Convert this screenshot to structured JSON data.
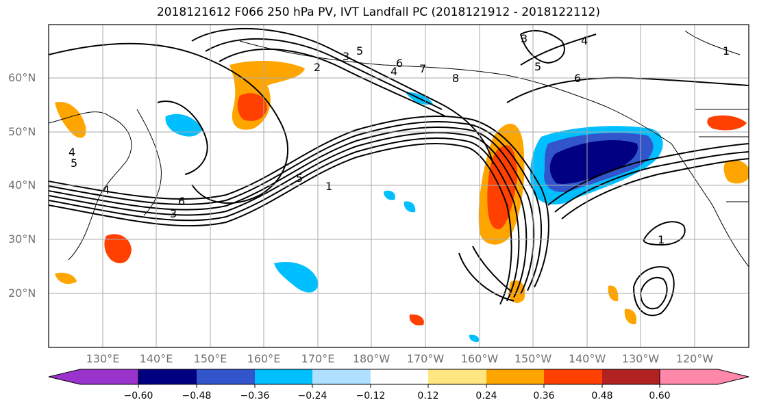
{
  "title": "2018121612 F066 250 hPa PV, IVT Landfall PC (2018121912 - 2018122112)",
  "lat_labels": [
    "60°N",
    "50°N",
    "40°N",
    "30°N",
    "20°N"
  ],
  "lon_labels": [
    "130°E",
    "140°E",
    "150°E",
    "160°E",
    "170°E",
    "180°W",
    "170°W",
    "160°W",
    "150°W",
    "140°W",
    "130°W",
    "120°W"
  ],
  "contour_labels": [
    "1",
    "2",
    "3",
    "4",
    "5",
    "6",
    "7",
    "8",
    "3",
    "5",
    "4",
    "6",
    "4",
    "5",
    "6",
    "1",
    "5",
    "4",
    "3",
    "1"
  ],
  "colorbar": {
    "ticks": [
      "−0.60",
      "−0.48",
      "−0.36",
      "−0.24",
      "−0.12",
      "0.12",
      "0.24",
      "0.36",
      "0.48",
      "0.60"
    ],
    "colors": [
      "#9933cc",
      "#000080",
      "#3355cc",
      "#00bfff",
      "#b0e0ff",
      "#ffffff",
      "#ffe680",
      "#ffa500",
      "#ff4000",
      "#b22222",
      "#ff88aa"
    ]
  }
}
